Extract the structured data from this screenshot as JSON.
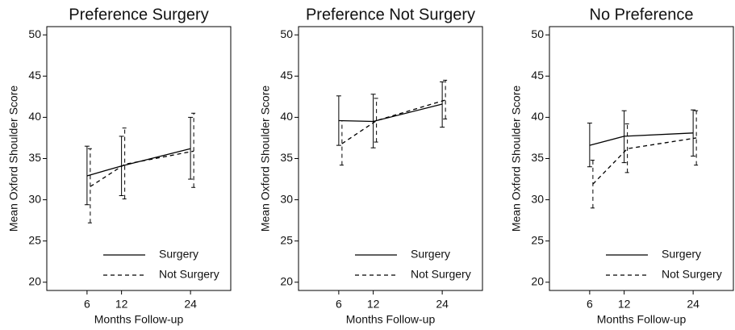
{
  "chart_data": [
    {
      "type": "line",
      "title": "Preference Surgery",
      "xlabel": "Months Follow-up",
      "ylabel": "Mean Oxford Shoulder Score",
      "x": [
        6,
        12,
        24
      ],
      "xlim": [
        -1,
        31
      ],
      "xticks": [
        6,
        12,
        24
      ],
      "ylim": [
        19,
        51
      ],
      "yticks": [
        20,
        25,
        30,
        35,
        40,
        45,
        50
      ],
      "legend": "lower right",
      "series": [
        {
          "name": "Surgery",
          "color": "#000000",
          "linestyle": "solid",
          "values": [
            32.9,
            34.1,
            36.2
          ],
          "lower": [
            29.4,
            30.5,
            32.5
          ],
          "upper": [
            36.5,
            37.7,
            40.0
          ]
        },
        {
          "name": "Not Surgery",
          "color": "#000000",
          "linestyle": "dashed",
          "values": [
            31.6,
            34.3,
            35.9
          ],
          "lower": [
            27.2,
            30.1,
            31.5
          ],
          "upper": [
            36.2,
            38.7,
            40.5
          ]
        }
      ]
    },
    {
      "type": "line",
      "title": "Preference Not Surgery",
      "xlabel": "Months Follow-up",
      "ylabel": "Mean Oxford Shoulder Score",
      "x": [
        6,
        12,
        24
      ],
      "xlim": [
        -1,
        31
      ],
      "xticks": [
        6,
        12,
        24
      ],
      "ylim": [
        19,
        51
      ],
      "yticks": [
        20,
        25,
        30,
        35,
        40,
        45,
        50
      ],
      "legend": "lower right",
      "series": [
        {
          "name": "Surgery",
          "color": "#000000",
          "linestyle": "solid",
          "values": [
            39.6,
            39.5,
            41.6
          ],
          "lower": [
            36.6,
            36.3,
            38.8
          ],
          "upper": [
            42.6,
            42.8,
            44.3
          ]
        },
        {
          "name": "Not Surgery",
          "color": "#000000",
          "linestyle": "dashed",
          "values": [
            36.8,
            39.6,
            42.1
          ],
          "lower": [
            34.2,
            37.0,
            39.8
          ],
          "upper": [
            39.6,
            42.3,
            44.5
          ]
        }
      ]
    },
    {
      "type": "line",
      "title": "No Preference",
      "xlabel": "Months Follow-up",
      "ylabel": "Mean Oxford Shoulder Score",
      "x": [
        6,
        12,
        24
      ],
      "xlim": [
        -1,
        31
      ],
      "xticks": [
        6,
        12,
        24
      ],
      "ylim": [
        19,
        51
      ],
      "yticks": [
        20,
        25,
        30,
        35,
        40,
        45,
        50
      ],
      "legend": "lower right",
      "series": [
        {
          "name": "Surgery",
          "color": "#000000",
          "linestyle": "solid",
          "values": [
            36.6,
            37.7,
            38.1
          ],
          "lower": [
            34.0,
            34.5,
            35.3
          ],
          "upper": [
            39.3,
            40.8,
            40.9
          ]
        },
        {
          "name": "Not Surgery",
          "color": "#000000",
          "linestyle": "dashed",
          "values": [
            31.9,
            36.2,
            37.5
          ],
          "lower": [
            29.0,
            33.3,
            34.2
          ],
          "upper": [
            34.8,
            39.2,
            40.8
          ]
        }
      ]
    }
  ]
}
